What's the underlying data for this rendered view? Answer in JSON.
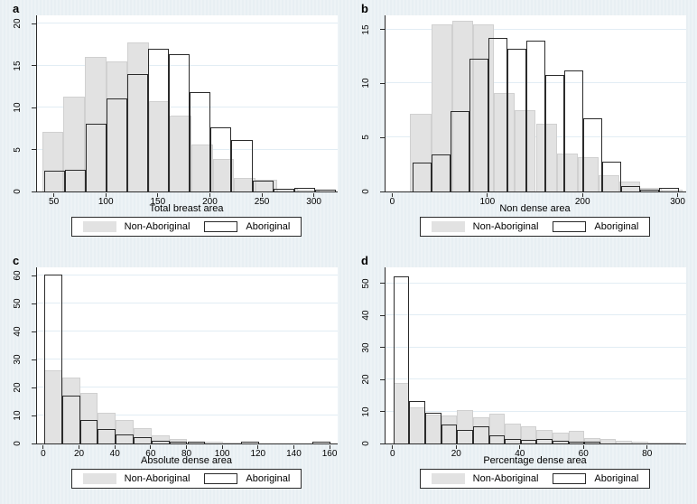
{
  "legend": {
    "items": [
      {
        "label": "Non-Aboriginal",
        "swatch": "gray-filled"
      },
      {
        "label": "Aboriginal",
        "swatch": "white-outlined"
      }
    ]
  },
  "colors": {
    "background": "#e8eff3",
    "plot_background": "#ffffff",
    "gridline": "#e2edf4",
    "bar_fill": "#e2e2e2",
    "bar_fill_border": "#d0d0d0",
    "bar_outline": "#2b2b2b",
    "axis": "#2b2b2b",
    "text": "#000000"
  },
  "chart_data": [
    {
      "type": "bar",
      "subtype": "overlaid-histogram",
      "panel_label": "a",
      "xlabel": "Total breast area",
      "ylabel": "",
      "xlim": [
        33,
        322
      ],
      "ylim": [
        0,
        21
      ],
      "xticks": [
        50,
        100,
        150,
        200,
        250,
        300
      ],
      "yticks": [
        0,
        5,
        10,
        15,
        20
      ],
      "grid": "horizontal",
      "legend_position": "bottom-center",
      "series": [
        {
          "name": "Non-Aboriginal",
          "style": "filled",
          "bin_start": 38,
          "bin_width": 20.5,
          "heights": [
            7.1,
            11.3,
            16.0,
            15.5,
            17.8,
            10.8,
            9.0,
            5.6,
            3.9,
            1.6,
            1.4,
            0.3,
            0.2
          ]
        },
        {
          "name": "Aboriginal",
          "style": "outline",
          "bin_start": 40,
          "bin_width": 20,
          "heights": [
            2.5,
            2.6,
            8.1,
            11.1,
            14.0,
            17.0,
            16.4,
            11.9,
            7.7,
            6.1,
            1.3,
            0.35,
            0.45,
            0.2
          ]
        }
      ]
    },
    {
      "type": "bar",
      "subtype": "overlaid-histogram",
      "panel_label": "b",
      "xlabel": "Non dense area",
      "ylabel": "",
      "xlim": [
        -8,
        308
      ],
      "ylim": [
        0,
        16.3
      ],
      "xticks": [
        0,
        100,
        200,
        300
      ],
      "yticks": [
        0,
        5,
        10,
        15
      ],
      "grid": "horizontal",
      "legend_position": "bottom-center",
      "series": [
        {
          "name": "Non-Aboriginal",
          "style": "filled",
          "bin_start": 18,
          "bin_width": 22,
          "heights": [
            7.2,
            15.5,
            15.8,
            15.5,
            9.1,
            7.5,
            6.3,
            3.5,
            3.2,
            1.5,
            0.9,
            0.3,
            0.2
          ]
        },
        {
          "name": "Aboriginal",
          "style": "outline",
          "bin_start": 20,
          "bin_width": 20,
          "heights": [
            2.7,
            3.4,
            7.4,
            12.3,
            14.2,
            13.2,
            14.0,
            10.8,
            11.2,
            6.8,
            2.8,
            0.5,
            0.2,
            0.35
          ]
        }
      ]
    },
    {
      "type": "bar",
      "subtype": "overlaid-histogram",
      "panel_label": "c",
      "xlabel": "Absolute dense area",
      "ylabel": "",
      "xlim": [
        -4,
        164
      ],
      "ylim": [
        0,
        63
      ],
      "xticks": [
        0,
        20,
        40,
        60,
        80,
        100,
        120,
        140,
        160
      ],
      "yticks": [
        0,
        10,
        20,
        30,
        40,
        50,
        60
      ],
      "grid": "horizontal",
      "legend_position": "bottom-center",
      "series": [
        {
          "name": "Non-Aboriginal",
          "style": "filled",
          "bin_start": 0,
          "bin_width": 10,
          "heights": [
            26.2,
            23.5,
            18.0,
            11.0,
            8.5,
            5.5,
            3.0,
            1.5,
            0.8,
            0.7,
            0.2
          ]
        },
        {
          "name": "Aboriginal",
          "style": "outline",
          "bin_start": 0,
          "bin_width": 10,
          "heights": [
            60.5,
            17.0,
            8.5,
            5.2,
            3.1,
            2.2,
            1.0,
            0.3,
            0.3,
            0,
            0,
            0.3,
            0,
            0,
            0,
            0.3
          ]
        }
      ]
    },
    {
      "type": "bar",
      "subtype": "overlaid-histogram",
      "panel_label": "d",
      "xlabel": "Percentage dense area",
      "ylabel": "",
      "xlim": [
        -2.5,
        92
      ],
      "ylim": [
        0,
        55
      ],
      "xticks": [
        0,
        20,
        40,
        60,
        80
      ],
      "yticks": [
        0,
        10,
        20,
        30,
        40,
        50
      ],
      "grid": "horizontal",
      "legend_position": "bottom-center",
      "series": [
        {
          "name": "Non-Aboriginal",
          "style": "filled",
          "bin_start": 0,
          "bin_width": 5,
          "heights": [
            18.8,
            11.3,
            8.9,
            8.8,
            10.3,
            8.2,
            9.2,
            6.2,
            5.4,
            4.1,
            3.4,
            4.0,
            1.8,
            1.4,
            0.9,
            0.5,
            0.3,
            0.4
          ]
        },
        {
          "name": "Aboriginal",
          "style": "outline",
          "bin_start": 0,
          "bin_width": 5,
          "heights": [
            52.3,
            13.3,
            9.7,
            5.8,
            4.2,
            5.5,
            2.6,
            1.3,
            1.0,
            1.3,
            0.8,
            0.25,
            0.25
          ]
        }
      ]
    }
  ]
}
